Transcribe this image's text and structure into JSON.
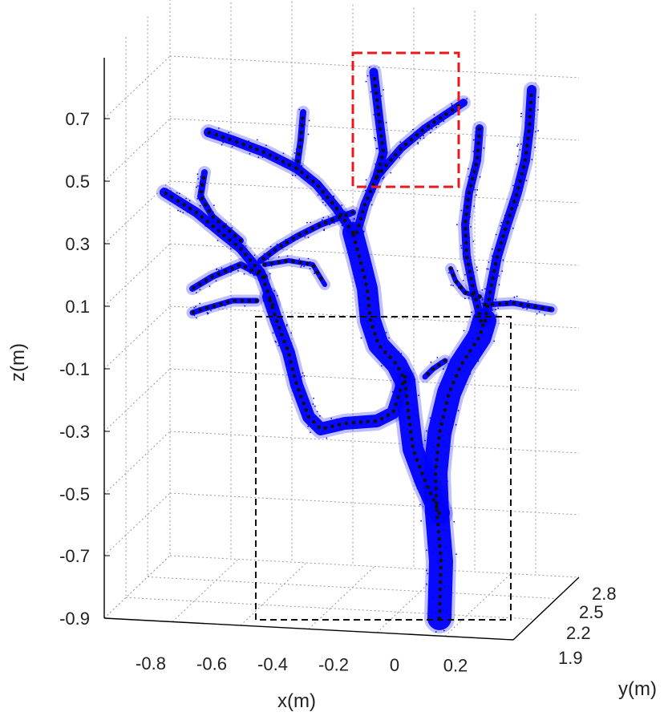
{
  "chart_data": {
    "type": "scatter",
    "title": "",
    "xlabel": "x(m)",
    "ylabel": "y(m)",
    "zlabel": "z(m)",
    "xticks": [
      "-0.8",
      "-0.6",
      "-0.4",
      "-0.2",
      "0",
      "0.2"
    ],
    "yticks": [
      "1.9",
      "2.2",
      "2.5",
      "2.8"
    ],
    "zticks": [
      "0.7",
      "0.5",
      "0.3",
      "0.1",
      "-0.1",
      "-0.3",
      "-0.5",
      "-0.7",
      "-0.9"
    ],
    "xlim": [
      -0.9,
      0.3
    ],
    "ylim": [
      1.9,
      2.8
    ],
    "zlim": [
      -0.9,
      0.8
    ],
    "grid": true,
    "series": [
      {
        "name": "",
        "color": "#0000ff",
        "marker": "point-cloud"
      },
      {
        "name": "",
        "color": "#111111",
        "marker": "skeleton-dots"
      }
    ],
    "annotations": [
      {
        "shape": "dashed-rectangle",
        "color": "#e8191e",
        "region": "upper branch"
      },
      {
        "shape": "dashed-rectangle",
        "color": "#111111",
        "region": "trunk"
      }
    ]
  },
  "colors": {
    "cloud": "#0000ff",
    "skeleton": "#111111",
    "red_box": "#e8191e",
    "grid": "#9a9a9a"
  }
}
